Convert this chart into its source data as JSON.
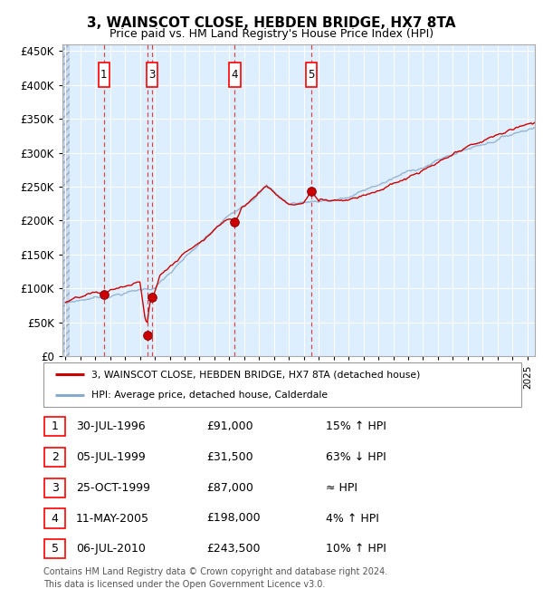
{
  "title": "3, WAINSCOT CLOSE, HEBDEN BRIDGE, HX7 8TA",
  "subtitle": "Price paid vs. HM Land Registry's House Price Index (HPI)",
  "ylabel_ticks": [
    "£0",
    "£50K",
    "£100K",
    "£150K",
    "£200K",
    "£250K",
    "£300K",
    "£350K",
    "£400K",
    "£450K"
  ],
  "ytick_values": [
    0,
    50000,
    100000,
    150000,
    200000,
    250000,
    300000,
    350000,
    400000,
    450000
  ],
  "ylim": [
    0,
    460000
  ],
  "xlim_start": 1993.8,
  "xlim_end": 2025.5,
  "background_color": "#ddeeff",
  "grid_color": "#ffffff",
  "red_line_color": "#cc0000",
  "blue_line_color": "#88aacc",
  "transactions": [
    {
      "num": 1,
      "date": "30-JUL-1996",
      "price": 91000,
      "year": 1996.58,
      "hpi_note": "15% ↑ HPI"
    },
    {
      "num": 2,
      "date": "05-JUL-1999",
      "price": 31500,
      "year": 1999.51,
      "hpi_note": "63% ↓ HPI"
    },
    {
      "num": 3,
      "date": "25-OCT-1999",
      "price": 87000,
      "year": 1999.82,
      "hpi_note": "≈ HPI"
    },
    {
      "num": 4,
      "date": "11-MAY-2005",
      "price": 198000,
      "year": 2005.36,
      "hpi_note": "4% ↑ HPI"
    },
    {
      "num": 5,
      "date": "06-JUL-2010",
      "price": 243500,
      "year": 2010.51,
      "hpi_note": "10% ↑ HPI"
    }
  ],
  "legend_line1": "3, WAINSCOT CLOSE, HEBDEN BRIDGE, HX7 8TA (detached house)",
  "legend_line2": "HPI: Average price, detached house, Calderdale",
  "table_rows": [
    [
      "1",
      "30-JUL-1996",
      "£91,000",
      "15% ↑ HPI"
    ],
    [
      "2",
      "05-JUL-1999",
      "£31,500",
      "63% ↓ HPI"
    ],
    [
      "3",
      "25-OCT-1999",
      "£87,000",
      "≈ HPI"
    ],
    [
      "4",
      "11-MAY-2005",
      "£198,000",
      "4% ↑ HPI"
    ],
    [
      "5",
      "06-JUL-2010",
      "£243,500",
      "10% ↑ HPI"
    ]
  ],
  "footer1": "Contains HM Land Registry data © Crown copyright and database right 2024.",
  "footer2": "This data is licensed under the Open Government Licence v3.0."
}
